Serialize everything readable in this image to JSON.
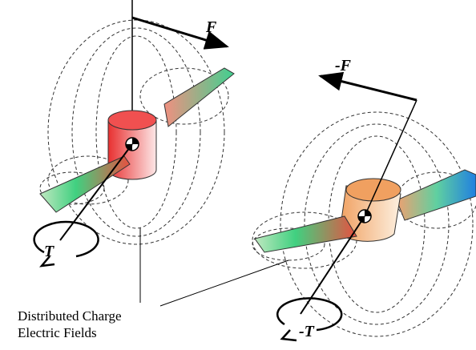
{
  "labels": {
    "force": "F",
    "force_neg": "-F",
    "torque": "T",
    "torque_neg": "-T"
  },
  "caption": {
    "line1": "Distributed Charge",
    "line2": "Electric Fields"
  }
}
